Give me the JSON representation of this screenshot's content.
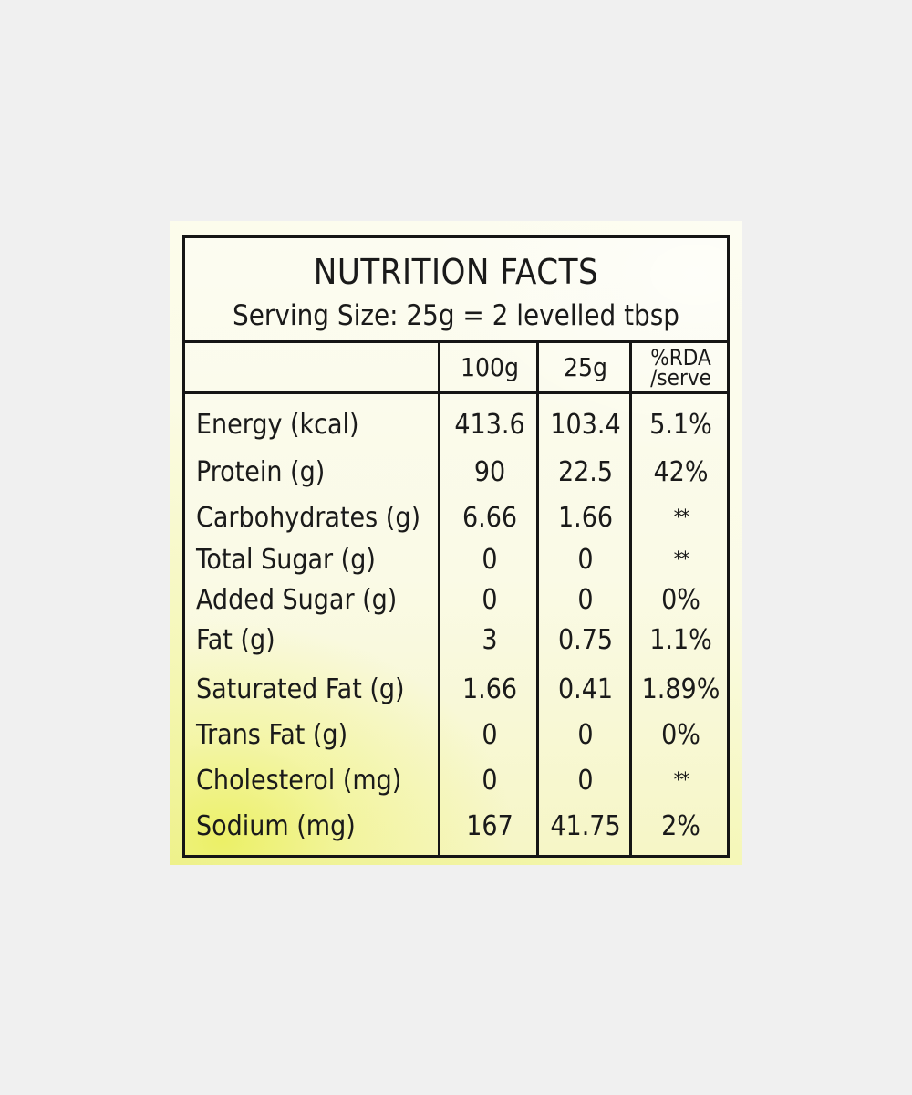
{
  "title": "NUTRITION FACTS",
  "serving_size": "Serving Size: 25g = 2 levelled tbsp",
  "columns": {
    "per_100g": "100g",
    "per_25g": "25g",
    "rda_line1": "%RDA",
    "rda_line2": "/serve"
  },
  "rows": [
    {
      "nutrient": "Energy (kcal)",
      "per_100g": "413.6",
      "per_25g": "103.4",
      "rda": "5.1%"
    },
    {
      "nutrient": "Protein (g)",
      "per_100g": "90",
      "per_25g": "22.5",
      "rda": "42%"
    },
    {
      "nutrient": "Carbohydrates (g)",
      "per_100g": "6.66",
      "per_25g": "1.66",
      "rda": "**"
    },
    {
      "nutrient": "Total Sugar (g)",
      "per_100g": "0",
      "per_25g": "0",
      "rda": "**"
    },
    {
      "nutrient": "Added Sugar (g)",
      "per_100g": "0",
      "per_25g": "0",
      "rda": "0%"
    },
    {
      "nutrient": "Fat (g)",
      "per_100g": "3",
      "per_25g": "0.75",
      "rda": "1.1%"
    },
    {
      "nutrient": "Saturated Fat (g)",
      "per_100g": "1.66",
      "per_25g": "0.41",
      "rda": "1.89%"
    },
    {
      "nutrient": "Trans Fat (g)",
      "per_100g": "0",
      "per_25g": "0",
      "rda": "0%"
    },
    {
      "nutrient": "Cholesterol (mg)",
      "per_100g": "0",
      "per_25g": "0",
      "rda": "**"
    },
    {
      "nutrient": "Sodium (mg)",
      "per_100g": "167",
      "per_25g": "41.75",
      "rda": "2%"
    }
  ],
  "colors": {
    "background": "#f0f0f0",
    "border": "#151515",
    "text": "#1a1a1a",
    "label_tint": "#eef18a"
  }
}
